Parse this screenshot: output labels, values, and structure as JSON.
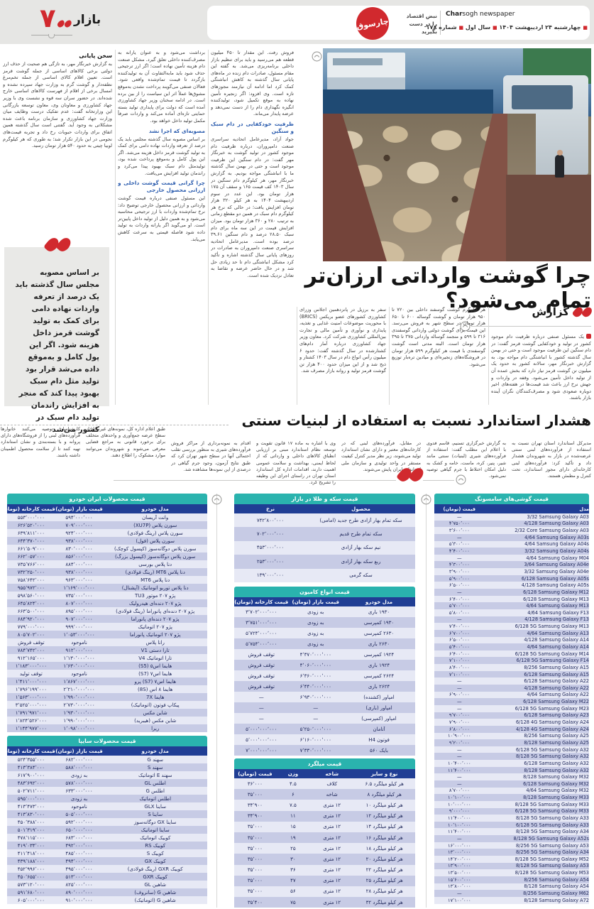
{
  "header": {
    "page_label": "بازار",
    "page_number": "۷",
    "paper_name_script": "چارسوق",
    "paper_name_en_bold": "Char",
    "paper_name_en_rest": "sogh newspaper",
    "tagline_line1": "نبض اقتصاد",
    "tagline_line2": "را در دست بگیرید",
    "date": "چهارشنبه ۲۴ اردیبهشت ۱۴۰۴",
    "year": "سال اول",
    "issue": "شماره ۱۷۸"
  },
  "article1": {
    "kicker": "گزارش",
    "headline": "چرا گوشت وارداتی ارزان‌تر تمام می‌شود؟",
    "lead": "یک مسئول صنفی درباره ظرفیت دام موجود کشور در تولید و خودکفایی گوشت قرمز گفت: در دام سنگین این ظرفیت موجود است و حتی در بهمن سال گذشته کشور با انباشتگی دام مواجه بود. به گزارش خبرنگار مهر، سالانه کشور به حدود یک میلیون تن گوشت قرمز نیاز دارد که بخش عمده آن از تولید داخل تأمین می‌شود. وقفه در واردات و جهش نرخ ارز باعث شد قیمت‌ها در هفته‌های اخیر دوباره صعودی شود و مصرف‌کنندگان نگران آینده بازار باشند.",
    "col_prices": "هر کیلوگرم گوشت گوسفند داخلی بین ۷۲۰ تا ۹۵۰ هزار تومان و گوشت گوساله ۶۰۰ تا ۶۵۰ هزار تومان در سطح شهر به فروش می‌رسد. این قیمت برای گوشت دولتی وارداتی گوسفندی ۳۱۶ تا ۵۹۹ و منجمد گوساله وارداتی ۳۷۵ تا ۳۹۵ هزار تومان است. البته مدتی است گوشت گوسفندی با قیمت هر کیلوگرم ۵۹۹ هزار تومان در فروشگاه‌های زنجیره‌ای و میادین تره‌بار توزیع می‌شود.",
    "col_brics": "سفر به برزیل در پانزدهمین اجلاس وزرای کشاورزی کشورهای عضو بریکس (BRICS) با محوریت موضوعات امنیت غذایی و تغذیه، پایداری و نوآوری و تأمین مالی و تجارت بین‌المللی کشاورزی شرکت کرد. معاون وزیر جهاد کشاورزی درباره آمار دام‌های کشتارشده در سال گذشته گفت: حدود ۶ میلیون رأس انواع دام در سال ۱۴۰۳ کشتار و ذبح شد و از این میزان حدود ۴۰۰ هزار تن گوشت قرمز تولید و روانه بازار مصرف شد.",
    "col3_top": "فروش رفت. این مقدار تا ۴۵۰ میلیون قطعه هم می‌رسید و باید برای تنظیم بازار داخلی برنامه‌ریزی می‌شد. به گفته این مقام مسئول، صادرات دام زنده در ماه‌های پایانی سال گذشته به کاهش انباشتگی کمک کرد اما ادامه آن نیازمند مجوزهای تازه است. وی افزود: اگر زنجیره تأمین نهاده به موقع تکمیل شود، تولیدکننده انگیزه نگهداری دام را از دست نمی‌دهد و عرضه پایدار می‌ماند.",
    "subhead_capacity": "ظرفیت خودکفایی در دام سبک و سنگین",
    "col3_bottom": "جواد آزاد، مدیرعامل اتحادیه سراسری صنعت دامپروران، درباره ظرفیت دام موجود کشور در تولید گوشت به خبرنگار مهر گفت: در دام سنگین این ظرفیت موجود است و حتی در بهمن سال گذشته ما با انباشتگی مواجه بودیم. به گزارش خبرنگار مهر، هر کیلوگرم دام سنگین در سال ۱۴۰۳ کف قیمت ۱۶۵ و سقف آن ۱۷۵ هزار تومان بود. این عدد در سوم اردیبهشت ۱۴۰۴ به هر کیلو ۳۲۰ هزار تومان افزایش یافت؛ در حالی که نرخ هر کیلوگرم دام سبک در همین دو مقطع زمانی به ترتیب ۲۸۰ و ۳۶۰ هزار تومان بود. میزان افزایش قیمت در این سه ماه برای دام سبک ۲۸.۵۰ درصد و دام سنگین ۳۹.۶۱ درصد بوده است. مدیرعامل اتحادیه سراسری صنعت دامپروران به صادرات در روزهای پایانی سال گذشته اشاره و تأکید کرد مشکل انباشتگی دام تا حد زیادی حل شد و در حال حاضر عرضه و تقاضا به تعادل نزدیک شده است.",
    "col2_top": "برداشت می‌شود و به عنوان یارانه به مصرف‌کننده داخلی تعلق گیرد. مشکل صنعت دام هزینه تأمین نهاده است؛ اگر ارز ترجیحی حذف شود باید مابه‌التفاوت آن به تولیدکننده بازگردد تا قیمت تمام‌شده واقعی شود. فعالان صنفی می‌گویند پرداخت نشدن به‌موقع مشوق‌ها عملاً اثر این سیاست را از بین برده است. در ادامه سخنان وزیر جهاد کشاورزی آمده است که دولت برای پایداری تولید بسته حمایتی تازه‌ای آماده می‌کند و واردات صرفاً مکمل تولید داخل خواهد بود.",
    "subhead_resolution": "مصوبه‌ای که اجرا نشد",
    "col2_mid": "بر اساس مصوبه سال گذشته مجلس باید یک درصد از تعرفه واردات نهاده دامی برای کمک به تولید گوشت قرمز داخل هزینه می‌شد. اگر این پول کامل و به‌موقع پرداخت شده بود، تولیدمثل دام سبک بهبود پیدا می‌کرد و راندمان تولید افزایش می‌یافت.",
    "subhead_why": "چرا گرانی قیمت گوشت داخلی و ارزانی محصول خارجی",
    "col2_bottom": "این مسئول صنفی درباره قیمت گوشت وارداتی و ارزانی محصول خارجی توضیح داد: نرخ تمام‌شده واردات با ارز ترجیحی محاسبه می‌شود و به همین دلیل از تولید داخل پایین‌تر است. او می‌گوید اگر یارانه واردات به تولید داده شود فاصله قیمتی به سرعت کاهش می‌یابد.",
    "subhead_final": "سخن پایانی",
    "col1_text": "به گزارش خبرنگار مهر، به تازگی هم صحبت از حذف ارز دولتی برخی کالاهای اساسی از جمله گوشت قرمز است. تعیین اقلام کالای اساسی از جمله تخم‌مرغ نطفه‌دار و گوشت گرم به وزارت جهاد سپرده نشده و امسال برخی از اقلام از فهرست کالاهای اساسی خارج شده‌اند. در حضور سران سه قوه و نشست وی با وزیر جهاد کشاورزی و معاونان وی، معاون توسعه بازرگانی این وزارتخانه گفت: عدم تفکیک درست وظایف میان وزارت جهاد کشاورزی و سازمان برنامه باعث شده مشکلاتی به وجود آید. گفتنی است سال گذشته همین اتفاق برای واردات حبوبات رخ داد و تجربه قیمت‌های نجومی در این بازار تکرار شد؛ به طوری که هر کیلوگرم لوبیا چیتی به حدود ۵۴۰ هزار تومان رسید.",
    "pullquote": "بر اساس مصوبه مجلس سال گذشته باید یک درصد از تعرفه واردات نهاده دامی برای کمک به تولید گوشت قرمز داخل هزینه شود. اگر این پول کامل و به‌موقع داده می‌شد قرار بود تولید مثل دام سبک بهبود پیدا کند که منجر به افزایش راندمان تولید دام سبک در کشور می‌شد"
  },
  "article2": {
    "headline": "هشدار استاندارد نسبت به استفاده از لبنیات سنتی",
    "columns": [
      "مدیرکل استاندارد استان تهران نسبت به استفاده از فرآورده‌های لبنی سنتی عرضه‌شده در بازار به شهروندان هشدار داد و تأکید کرد: فرآورده‌های لبنی کارخانه‌ای دارای مجوز استاندارد، تحت کنترل و مطمئن هستند.",
      "به گزارش خبرگزاری تسنیم، قاسم فدوی با اعلام این مطلب گفت: استفاده از فرآورده‌های شیری (لبنیات) سنتی مانند شیر، پنیر، کره، ماست، خامه و کشک به دلیل امکان اختلاط با جرم گیاهی توصیه نمی‌شود.",
      "در مقابل، فرآورده‌های لبنی که در کارخانه‌های معتبر و دارای نشان استاندارد تولید می‌شوند، زیر نظر مدیر کنترل کیفیت مستقر در واحد تولیدی و سازمان ملی استاندارد ایران پایش می‌شوند.",
      "وی با اشاره به ماده ۱۷ قانون تقویت و توسعه نظام استاندارد مبنی بر ارزیابی انطباق کالاهای داخلی و وارداتی که از لحاظ ایمنی، بهداشت و سلامت عمومی اهمیت دارند، اقدامات اداره کل استاندارد استان تهران در راستای اجرای این وظیفه را تشریح کرد.",
      "اقدام به نمونه‌برداری از مراکز فروش فرآورده‌های شیری به منظور بررسی تقلب احتمالی آنها در سطح شهر تهران کرد که طبق نتایج آزمون، وجود جرم گیاهی در درصدی از این نمونه‌ها مشاهده شد.",
      "طبق اعلام اداره کل، نمونه‌های غیرمجاز از سطح عرضه جمع‌آوری و واحدهای متخلف برای برخورد قانونی به مراجع قضایی معرفی می‌شوند و شهروندان می‌توانند موارد مشکوک را اطلاع دهند.",
      "کارشناسان توصیه می‌کنند خانوارها فرآورده‌های لبنی را از فروشگاه‌های دارای پروانه و با بسته‌بندی و نشان استاندارد تهیه کنند تا از سلامت محصول اطمینان داشته باشند."
    ]
  },
  "tables": {
    "iran_khodro": {
      "title": "قیمت محصولات ایران خودرو",
      "headers": [
        "مدل خودرو",
        "قیمت بازار (تومان)",
        "قیمت کارخانه (تومان)"
      ],
      "rows": [
        [
          "وانت آریسان",
          "۵۹۴٬۰۰۰٬۰۰۰",
          "۵۵۳٬۰۰۰٬۰۰۰"
        ],
        [
          "سورن پلاس (XU7P)",
          "۷۰۹٬۰۰۰٬۰۰۰",
          "۶۲۶٬۵۲۰٬۰۰۰"
        ],
        [
          "سورن پلاس (رینگ فولادی)",
          "۹۲۴٬۰۰۰٬۰۰۰",
          "۶۳۹٬۸۱۱٬۰۰۰"
        ],
        [
          "سورن پلاس (فول)",
          "۹۳۸٬۰۰۰٬۰۰۰",
          "۶۴۴٬۳۷۰٬۰۰۰"
        ],
        [
          "سورن پلاس دوگانه‌سوز (کپسول کوچک)",
          "۸۳۰٬۰۰۰٬۰۰۰",
          "۶۶۱٬۵۰۹٬۰۰۰"
        ],
        [
          "سورن پلاس دوگانه‌سوز (کپسول بزرگ)",
          "۸۵۶٬۰۰۰٬۰۰۰",
          "۶۶۲٬۰۵۷٬۰۰۰"
        ],
        [
          "دنا پلاس بورسی",
          "۸۸۴٬۰۰۰٬۰۰۰",
          "۷۳۵٬۷۶۶٬۰۰۰"
        ],
        [
          "دنا پلاس MT6 (رینگ فولادی)",
          "۹۳۸٬۰۰۰٬۰۰۰",
          "۷۳۲٬۲۵۰٬۰۰۰"
        ],
        [
          "دنا پلاس MT6",
          "۹۶۳٬۰۰۰٬۰۰۰",
          "۷۵۸٬۶۴۲٬۰۰۰"
        ],
        [
          "دنا پلاس توربو اتوماتیک (آپشنال)",
          "۱٬۱۶۹٬۰۰۰٬۰۰۰",
          "۹۵۵٬۹۷۲٬۰۰۰"
        ],
        [
          "پژو ۲۰۷ موتور TU3",
          "۷۳۵٬۰۰۰٬۰۰۰",
          "۵۹۸٬۵۶۰٬۰۰۰"
        ],
        [
          "پژو ۲۰۷ دنده‌ای هیدرولیک",
          "۸۰۷٬۰۰۰٬۰۰۰",
          "۶۴۵٬۸۲۴٬۰۰۰"
        ],
        [
          "پژو ۲۰۷ دنده‌ای پانوراما (رینگ فولادی)",
          "۸۹۵٬۰۰۰٬۰۰۰",
          "۶۶۳٬۵۰۰٬۰۰۰"
        ],
        [
          "پژو ۲۰۷ دنده‌ای پانوراما",
          "۹۰۷٬۰۰۰٬۰۰۰",
          "۶۸۴٬۹۲۰٬۰۰۰"
        ],
        [
          "پژو ۲۰۷ اتوماتیک",
          "۹۹۹٬۰۰۰٬۰۰۰",
          "۷۷۹٬۰۰۰٬۰۰۰"
        ],
        [
          "پژو ۲۰۷ اتوماتیک پانوراما",
          "۱٬۰۵۳٬۰۰۰٬۰۰۰",
          "۸۰۵٬۷۰۲٬۰۰۰"
        ],
        [
          "رانا پلاس",
          "ناموجود",
          "توقف فروش"
        ],
        [
          "تارا دستی V1",
          "۹۱۲٬۰۰۰٬۰۰۰",
          "۷۸۴٬۷۴۲٬۰۰۰"
        ],
        [
          "تارا اتوماتیک V4",
          "۱٬۱۳۰٬۰۰۰٬۰۰۰",
          "۹۱۲٬۱۶۵٬۰۰۰"
        ],
        [
          "هایما اس۵ (S5)",
          "۱٬۶۳۰٬۰۰۰٬۰۰۰",
          "۱٬۱۸۳٬۰۰۰٬۰۰۰"
        ],
        [
          "هایما اس۷ (S7)",
          "ناموجود",
          "توقف تولید"
        ],
        [
          "هایما اس۷ (S7) پرو",
          "۱٬۸۶۷٬۰۰۰٬۰۰۰",
          "۱٬۴۱۱٬۰۰۰٬۰۰۰"
        ],
        [
          "هایما ۸ اس (8S)",
          "۲٬۲۱۰٬۰۰۰٬۰۰۰",
          "۱٬۷۹۶٬۱۹۹٬۰۰۰"
        ],
        [
          "هایما 7X",
          "۱٬۹۹۰٬۰۰۰٬۰۰۰",
          "۱٬۵۶۳٬۰۰۰٬۰۰۰"
        ],
        [
          "پیکاپ فوتون (اتوماتیک)",
          "۲٬۷۳۰٬۰۰۰٬۰۰۰",
          "۳٬۵۲۵٬۰۰۰٬۰۰۰"
        ],
        [
          "شاین مکس",
          "۱٬۹۳۰٬۰۰۰٬۰۰۰",
          "۱٬۷۹۱٬۹۷۱٬۰۰۰"
        ],
        [
          "شاین مکس (هیبرید)",
          "۱٬۹۹۰٬۰۰۰٬۰۰۰",
          "۱٬۸۲۴٬۵۲۶٬۰۰۰"
        ],
        [
          "ریرا",
          "۱٬۰۹۸٬۰۰۰٬۰۰۰",
          "۱٬۱۴۴٬۹۷۷٬۰۰۰"
        ]
      ]
    },
    "saipa": {
      "title": "قیمت محصولات سایپا",
      "headers": [
        "مدل خودرو",
        "قیمت بازار (تومان)",
        "قیمت کارخانه (تومان)"
      ],
      "rows": [
        [
          "سهند G",
          "۶۸۲٬۰۰۰٬۰۰۰",
          "۵۲۴٬۳۵۵٬۰۰۰"
        ],
        [
          "سهند S",
          "۵۸۸٬۰۰۰٬۰۰۰",
          "۴۱۳٬۳۸۴٬۰۰۰"
        ],
        [
          "سهند E اتوماتیک",
          "به زودی",
          "۶۱۷٬۹۰۰٬۰۰۰"
        ],
        [
          "اطلس GL",
          "۵۷۸٬۰۰۰٬۰۰۰",
          "۴۸۳٬۶۹۲٬۰۰۰"
        ],
        [
          "اطلس G",
          "۶۳۳٬۰۰۰٬۰۰۰",
          "۵۰۲٬۷۱۱٬۰۰۰"
        ],
        [
          "اطلس اتوماتیک",
          "به زودی",
          "۵۹۵٬۰۰۰٬۰۰۰"
        ],
        [
          "ساینا GLX",
          "ناموجود",
          "۴۱۳٬۴۷۳٬۰۰۰"
        ],
        [
          "ساینا S",
          "۵۰۵٬۰۰۰٬۰۰۰",
          "۴۱۳٬۸۳۰٬۰۰۰"
        ],
        [
          "ساینا GX دوگانه‌سوز",
          "۵۹۲٬۰۰۰٬۰۰۰",
          "۴۵۰٬۳۸۸٬۰۰۰"
        ],
        [
          "ساینا اتوماتیک",
          "۶۵۰٬۰۰۰٬۰۰۰",
          "۵۰۱٬۳۱۹٬۰۰۰"
        ],
        [
          "کوییک اتوماتیک",
          "۶۸۳٬۰۰۰٬۰۰۰",
          "۴۷۸٬۱۱۵٬۰۰۰"
        ],
        [
          "کوییک RS",
          "۴۹۲٬۰۰۰٬۰۰۰",
          "۴۱۹٬۰۳۴٬۰۰۰"
        ],
        [
          "کوییک S",
          "۴۸۵٬۰۰۰٬۰۰۰",
          "۴۱۱٬۴۱۸٬۰۰۰"
        ],
        [
          "کوییک GX",
          "۴۹۴٬۰۰۰٬۰۰۰",
          "۴۳۹٬۱۸۸٬۰۰۰"
        ],
        [
          "کوییک GXR (رینگ فولادی)",
          "۴۹۵٬۰۰۰٬۰۰۰",
          "۴۵۲٬۹۹۶٬۰۰۰"
        ],
        [
          "کوییک GXR",
          "۵۱۳٬۰۰۰٬۰۰۰",
          "۴۵۰٬۶۵۵٬۰۰۰"
        ],
        [
          "شاهین GL",
          "۸۲۵٬۰۰۰٬۰۰۰",
          "۵۷۳٬۱۲۰٬۰۰۰"
        ],
        [
          "شاهین G (سانروف)",
          "۸۹۰٬۰۰۰٬۰۰۰",
          "۵۹۱٬۶۸۰٬۰۰۰"
        ],
        [
          "شاهین G (اتوماتیک)",
          "۹۱۰٬۰۰۰٬۰۰۰",
          "۶۰۵٬۰۰۰٬۰۰۰"
        ]
      ]
    },
    "coins": {
      "title": "قیمت سکه و طلا در بازار",
      "headers": [
        "محصول",
        "نرخ"
      ],
      "rows": [
        [
          "سکه تمام بهار آزادی طرح جدید (امامی)",
          "۷۴۲٬۸۰۰٬۰۰۰"
        ],
        [
          "سکه تمام طرح قدیم",
          "۷۰۲٬۰۰۰٬۰۰۰"
        ],
        [
          "نیم سکه بهار آزادی",
          "۴۵۳٬۰۰۰٬۰۰۰"
        ],
        [
          "ربع سکه بهار آزادی",
          "۲۵۳٬۰۰۰٬۰۰۰"
        ],
        [
          "سکه گرمی",
          "۱۳۹٬۰۰۰٬۰۰۰"
        ]
      ]
    },
    "trucks": {
      "title": "قیمت انواع کامیون",
      "headers": [
        "مدل خودرو",
        "قیمت بازار (تومان)",
        "قیمت کارخانه (تومان)"
      ],
      "rows": [
        [
          "۱۹۳۰ باری",
          "به زودی",
          "۳٬۷۰۲٬۰۰۰٬۰۰۰"
        ],
        [
          "۱۹۳۰ کمپرسی",
          "به زودی",
          "۳٬۷۵۱٬۰۰۰٬۰۰۰"
        ],
        [
          "۲۶۳۰ کمپرسی",
          "به زودی",
          "۵٬۷۲۴٬۰۰۰٬۰۰۰"
        ],
        [
          "۲۶۳۰ باری",
          "به زودی",
          "۵٬۷۵۴٬۰۰۰٬۰۰۰"
        ],
        [
          "۱۹۲۴ کمپرسی",
          "۴٬۳۷۰٬۰۰۰٬۰۰۰",
          "توقف فروش"
        ],
        [
          "۱۹۲۴ باری",
          "۴٬۰۶۰٬۰۰۰٬۰۰۰",
          "توقف فروش"
        ],
        [
          "۲۶۲۴ کمپرسی",
          "۶٬۳۶۰٬۰۰۰٬۰۰۰",
          "توقف فروش"
        ],
        [
          "۲۶۲۴ باری",
          "۶٬۴۴۰٬۰۰۰٬۰۰۰",
          "توقف فروش"
        ],
        [
          "امپاور (کشنده)",
          "۶٬۹۳۰٬۰۰۰٬۰۰۰",
          "—"
        ],
        [
          "امپاور (باری)",
          "—",
          "—"
        ],
        [
          "امپاور (کمپرسی)",
          "—",
          "—"
        ],
        [
          "آتامان",
          "۵٬۲۵۰٬۰۰۰٬۰۰۰",
          "۵٬۰۰۰٬۰۰۰٬۰۰۰"
        ],
        [
          "فوتون H4",
          "۶٬۱۶۰٬۰۰۰٬۰۰۰",
          "۵٬۰۰۰٬۰۰۰٬۰۰۰"
        ],
        [
          "بایک ۵۶۰",
          "۷٬۳۳۰٬۰۰۰٬۰۰۰",
          "۷٬۰۰۰٬۰۰۰٬۰۰۰"
        ]
      ]
    },
    "rebar": {
      "title": "قیمت میلگرد",
      "headers": [
        "نوع و سایز",
        "شاخه",
        "وزن",
        "قیمت (تومان)"
      ],
      "rows": [
        [
          "هر کیلو میلگرد ۶.۵",
          "کلاف",
          "۴.۵",
          "۳۶٬۰۰۰"
        ],
        [
          "هر کیلو میلگرد ۸",
          "شاخه",
          "۶",
          "۳۵٬۰۰۰"
        ],
        [
          "هر کیلو میلگرد ۱۰",
          "۱۲ متری",
          "۷.۵",
          "۳۴٬۹۰۰"
        ],
        [
          "هر کیلو میلگرد ۱۲",
          "۱۲ متری",
          "۱۱",
          "۳۴٬۹۰۰"
        ],
        [
          "هر کیلو میلگرد ۱۴",
          "۱۲ متری",
          "۱۵",
          "۳۵٬۰۰۰"
        ],
        [
          "هر کیلو میلگرد ۱۶",
          "۱۲ متری",
          "۱۹",
          "۳۵٬۰۰۰"
        ],
        [
          "هر کیلو میلگرد ۱۸",
          "۱۲ متری",
          "۲۵",
          "۳۵٬۰۰۰"
        ],
        [
          "هر کیلو میلگرد ۲۰",
          "۱۲ متری",
          "۳۰",
          "۳۵٬۰۰۰"
        ],
        [
          "هر کیلو میلگرد ۲۲",
          "۱۲ متری",
          "۳۶",
          "۳۵٬۰۰۰"
        ],
        [
          "هر کیلو میلگرد ۲۵",
          "۱۲ متری",
          "۴۷",
          "۳۵٬۰۰۰"
        ],
        [
          "هر کیلو میلگرد ۲۸",
          "۱۲ متری",
          "۵۶",
          "۳۵٬۰۰۰"
        ],
        [
          "هر کیلو میلگرد ۳۲",
          "۱۲ متری",
          "۷۵",
          "۳۵٬۴۰۰"
        ]
      ]
    },
    "samsung": {
      "title": "قیمت گوشی‌های سامسونگ",
      "headers": [
        "مدل",
        "قیمت (تومان)"
      ],
      "rows": [
        [
          "3/32 Samsung Galaxy A03",
          "—"
        ],
        [
          "4/128 Samsung Galaxy A03",
          "۴٬۷۵۰٬۰۰۰"
        ],
        [
          "2/32 Core Samsung Galaxy A03",
          "۳٬۶۰۰٬۰۰۰"
        ],
        [
          "4/64 Samsung Galaxy A03s",
          "—"
        ],
        [
          "4/64 Samsung Galaxy A04s",
          "۵٬۳۰۰٬۰۰۰"
        ],
        [
          "3/32 Samsung Galaxy A04s",
          "۴٬۴۰۰٬۰۰۰"
        ],
        [
          "4/64 Samsung Galaxy M04",
          "—"
        ],
        [
          "3/64 Samsung Galaxy A04e",
          "۴٬۳۰۰٬۰۰۰"
        ],
        [
          "3/32 Samsung Galaxy A04e",
          "۳٬۹۰۰٬۰۰۰"
        ],
        [
          "6/128 Samsung Galaxy A05s",
          "۵٬۹۰۰٬۰۰۰"
        ],
        [
          "4/128 Samsung Galaxy A05s",
          "۶٬۵۰۰٬۰۰۰"
        ],
        [
          "6/128 Samsung Galaxy M12",
          "—"
        ],
        [
          "6/128 Samsung Galaxy M13",
          "۶٬۴۰۰٬۰۰۰"
        ],
        [
          "4/64 Samsung Galaxy M13",
          "۵٬۷۰۰٬۰۰۰"
        ],
        [
          "4/64 Samsung Galaxy F13",
          "۵٬۸۰۰٬۰۰۰"
        ],
        [
          "4/128 Samsung Galaxy F13",
          "—"
        ],
        [
          "6/128 5G Samsung Galaxy M13",
          "۷٬۴۰۰٬۰۰۰"
        ],
        [
          "4/64 Samsung Galaxy A13",
          "۶٬۷۰۰٬۰۰۰"
        ],
        [
          "4/128 Samsung Galaxy A14",
          "۶٬۵۰۰٬۰۰۰"
        ],
        [
          "4/64 Samsung Galaxy A14",
          "۵٬۴۰۰٬۰۰۰"
        ],
        [
          "6/128 5G Samsung Galaxy M14",
          "۶٬۴۰۰٬۰۰۰"
        ],
        [
          "6/128 5G Samsung Galaxy F14",
          "۷٬۱۰۰٬۰۰۰"
        ],
        [
          "8/256 Samsung Galaxy A15",
          "۸٬۴۰۰٬۰۰۰"
        ],
        [
          "6/128 Samsung Galaxy A15",
          "۷٬۱۰۰٬۰۰۰"
        ],
        [
          "6/128 Samsung Galaxy A22",
          "—"
        ],
        [
          "4/128 Samsung Galaxy A22",
          "—"
        ],
        [
          "4/64 Samsung Galaxy A22",
          "۶٬۹۰۰٬۰۰۰"
        ],
        [
          "6/128 Samsung Galaxy M22",
          "—"
        ],
        [
          "6/128 5G Samsung Galaxy M23",
          "—"
        ],
        [
          "6/128 Samsung Galaxy A23",
          "۹٬۷۰۰٬۰۰۰"
        ],
        [
          "6/128 4G Samsung Galaxy A24",
          "۷٬۹۰۰٬۰۰۰"
        ],
        [
          "4/128 4G Samsung Galaxy A24",
          "۶٬۸۰۰٬۰۰۰"
        ],
        [
          "8/256 Samsung Galaxy A25",
          "۱۰٬۹۰۰٬۰۰۰"
        ],
        [
          "8/128 Samsung Galaxy A25",
          "۹٬۲۰۰٬۰۰۰"
        ],
        [
          "6/128 5G Samsung Galaxy A32",
          "—"
        ],
        [
          "8/128 5G Samsung Galaxy A32",
          "—"
        ],
        [
          "6/128 Samsung Galaxy A32",
          "۱۰٬۴۰۰٬۰۰۰"
        ],
        [
          "8/128 Samsung Galaxy A32",
          "۱۱٬۴۰۰٬۰۰۰"
        ],
        [
          "8/128 Samsung Galaxy M32",
          "—"
        ],
        [
          "6/128 Samsung Galaxy M32",
          "—"
        ],
        [
          "4/64 Samsung Galaxy M32",
          "۸٬۷۰۰٬۰۰۰"
        ],
        [
          "8/128 Samsung Galaxy M33",
          "۱۰٬۱۰۰٬۰۰۰"
        ],
        [
          "8/128 5G Samsung Galaxy M33",
          "۱۰٬۰۰۰٬۰۰۰"
        ],
        [
          "6/128 5G Samsung Galaxy M33",
          "۹٬۰۰۰٬۰۰۰"
        ],
        [
          "8/128 5G Samsung Galaxy A33",
          "۱۱٬۴۰۰٬۰۰۰"
        ],
        [
          "6/128 5G Samsung Galaxy A33",
          "۱۰٬۱۰۰٬۰۰۰"
        ],
        [
          "8/128 5G Samsung Galaxy A34",
          "۱۱٬۴۰۰٬۰۰۰"
        ],
        [
          "8/128 5G Samsung Galaxy A52s",
          "—"
        ],
        [
          "8/256 5G Samsung Galaxy A53",
          "۱۶٬۰۰۰٬۰۰۰"
        ],
        [
          "8/256 5G Samsung Galaxy A34",
          "۱۳٬۰۰۰٬۰۰۰"
        ],
        [
          "8/128 5G Samsung Galaxy M52",
          "۱۴٬۲۰۰٬۰۰۰"
        ],
        [
          "8/128 5G Samsung Galaxy A53",
          "۱۳٬۹۰۰٬۰۰۰"
        ],
        [
          "8/128 5G Samsung Galaxy M53",
          "۱۳٬۵۰۰٬۰۰۰"
        ],
        [
          "8/256 Samsung Galaxy A54",
          "۱۵٬۶۰۰٬۰۰۰"
        ],
        [
          "8/128 Samsung Galaxy A54",
          "۱۳٬۸۰۰٬۰۰۰"
        ],
        [
          "8/256 Samsung Galaxy M62",
          "—"
        ],
        [
          "8/128 Samsung Galaxy A72",
          "۱۷٬۱۰۰٬۰۰۰"
        ]
      ]
    }
  },
  "colors": {
    "accent_red": "#d1292e",
    "table_title_teal": "#2ab3ae",
    "table_header_blue": "#203e94",
    "row_light": "#e7e9f5",
    "row_dark": "#c7cbe5",
    "subhead_blue": "#2b5cae"
  }
}
